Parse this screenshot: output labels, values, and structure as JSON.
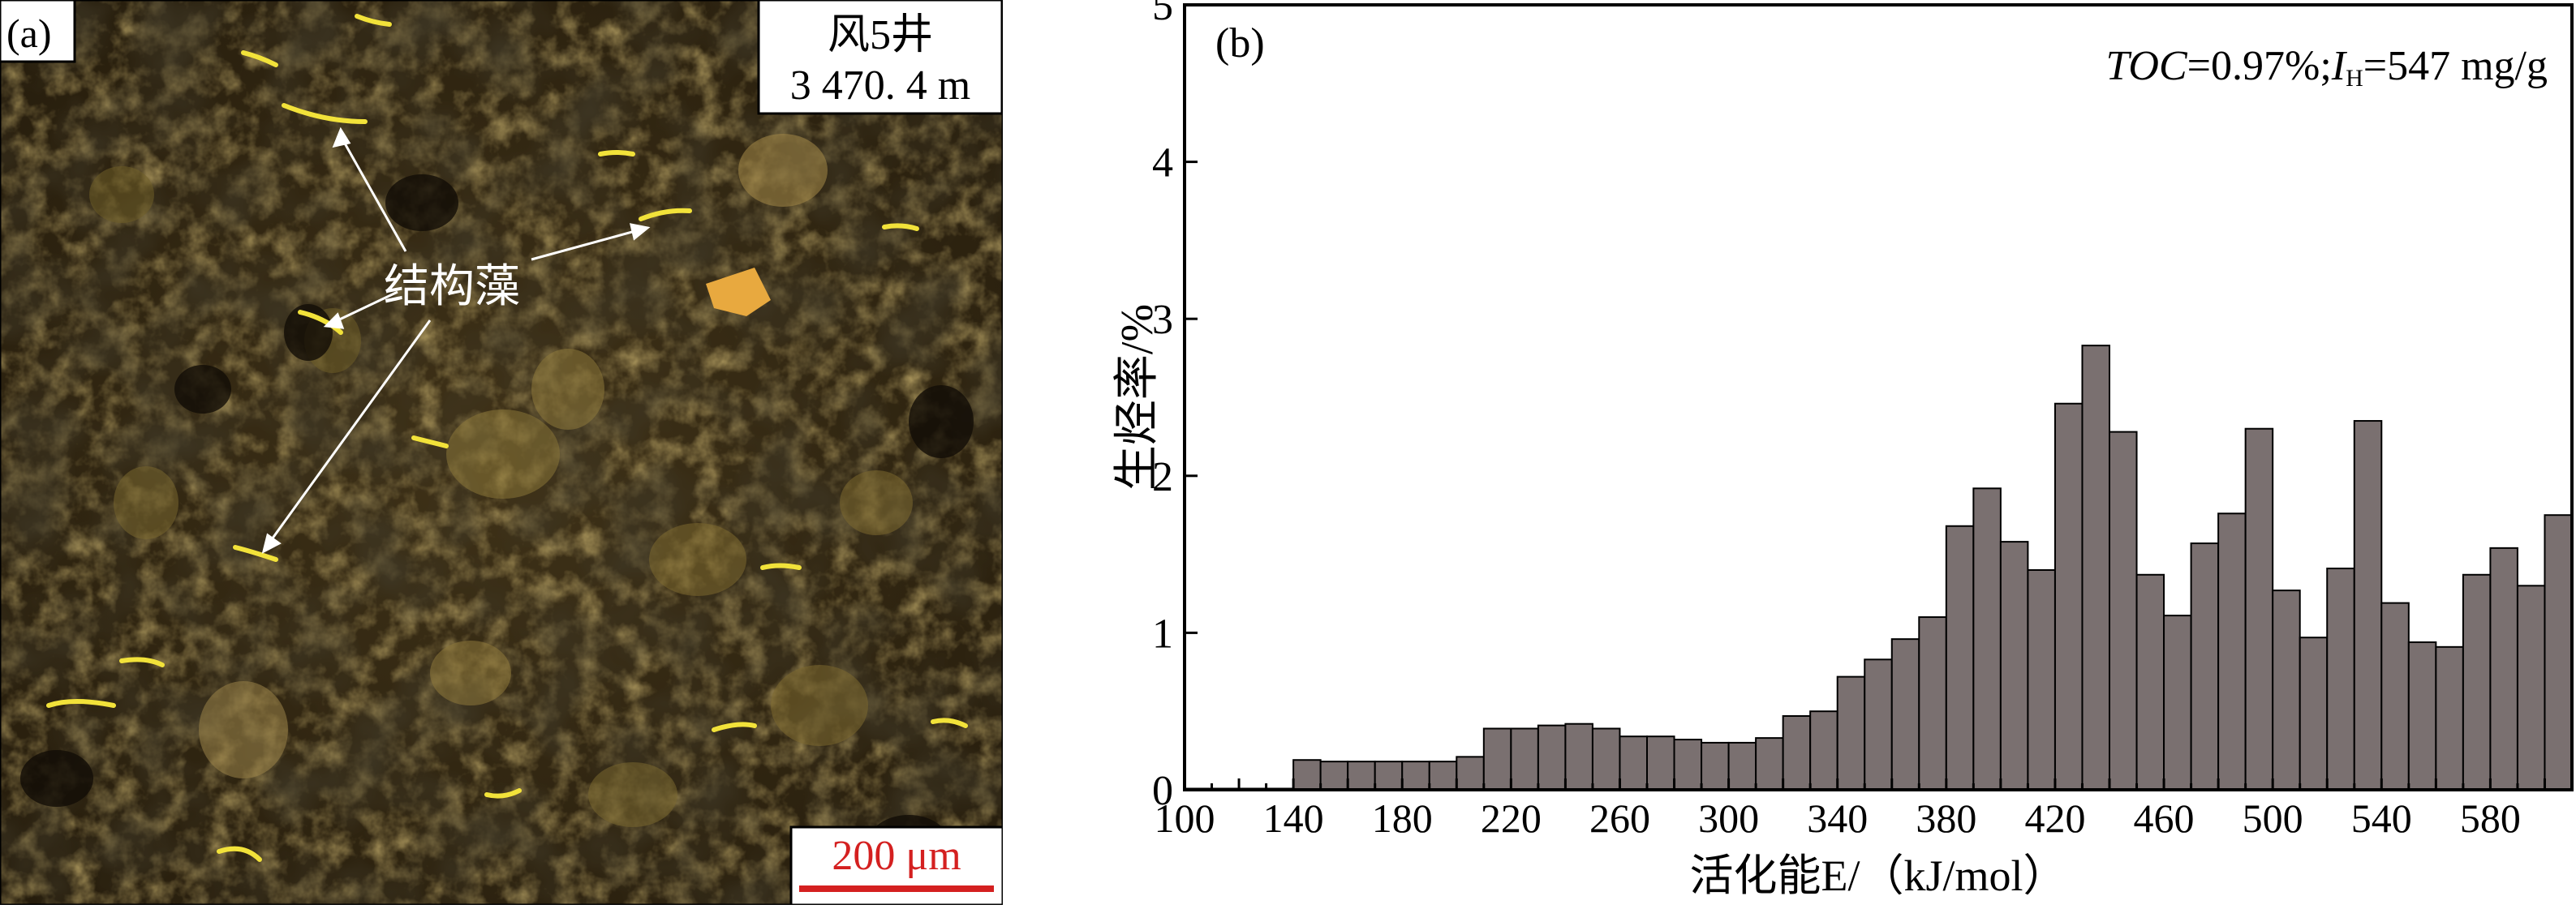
{
  "panel_a": {
    "panel_label": "(a)",
    "well_name": "风5井",
    "depth": "3 470. 4 m",
    "annotation": "结构藻",
    "scale_bar_label": "200 μm",
    "colors": {
      "scale_bar": "#d42020",
      "annotation": "#ffffff",
      "background": "#2e2412"
    }
  },
  "panel_b": {
    "panel_label": "(b)",
    "info_toc": "TOC",
    "info_toc_value": "=0.97%;",
    "info_ih": "I",
    "info_ih_sub": "H",
    "info_ih_value": "=547 mg/g"
  },
  "chart_data": {
    "type": "bar",
    "xlabel": "活化能E/（kJ/mol）",
    "ylabel": "生烃率/%",
    "xlim": [
      100,
      610
    ],
    "ylim": [
      0,
      5
    ],
    "x_ticks": [
      100,
      140,
      180,
      220,
      260,
      300,
      340,
      380,
      420,
      460,
      500,
      540,
      580
    ],
    "y_ticks": [
      0,
      1,
      2,
      3,
      4,
      5
    ],
    "bin_width": 10,
    "bar_color": "#7a7070",
    "bin_starts": [
      100,
      110,
      120,
      130,
      140,
      150,
      160,
      170,
      180,
      190,
      200,
      210,
      220,
      230,
      240,
      250,
      260,
      270,
      280,
      290,
      300,
      310,
      320,
      330,
      340,
      350,
      360,
      370,
      380,
      390,
      400,
      410,
      420,
      430,
      440,
      450,
      460,
      470,
      480,
      490,
      500,
      510,
      520,
      530,
      540,
      550,
      560,
      570,
      580,
      590,
      600
    ],
    "values": [
      0,
      0,
      0,
      0,
      0.19,
      0.18,
      0.18,
      0.18,
      0.18,
      0.18,
      0.21,
      0.39,
      0.39,
      0.41,
      0.42,
      0.39,
      0.34,
      0.34,
      0.32,
      0.3,
      0.3,
      0.33,
      0.47,
      0.5,
      0.72,
      0.83,
      0.96,
      1.1,
      1.68,
      1.92,
      1.58,
      1.4,
      2.46,
      2.83,
      2.28,
      1.37,
      1.11,
      1.57,
      1.76,
      2.3,
      1.27,
      0.97,
      1.41,
      2.35,
      1.19,
      0.94,
      0.91,
      1.37,
      1.54,
      1.3,
      1.75
    ]
  }
}
